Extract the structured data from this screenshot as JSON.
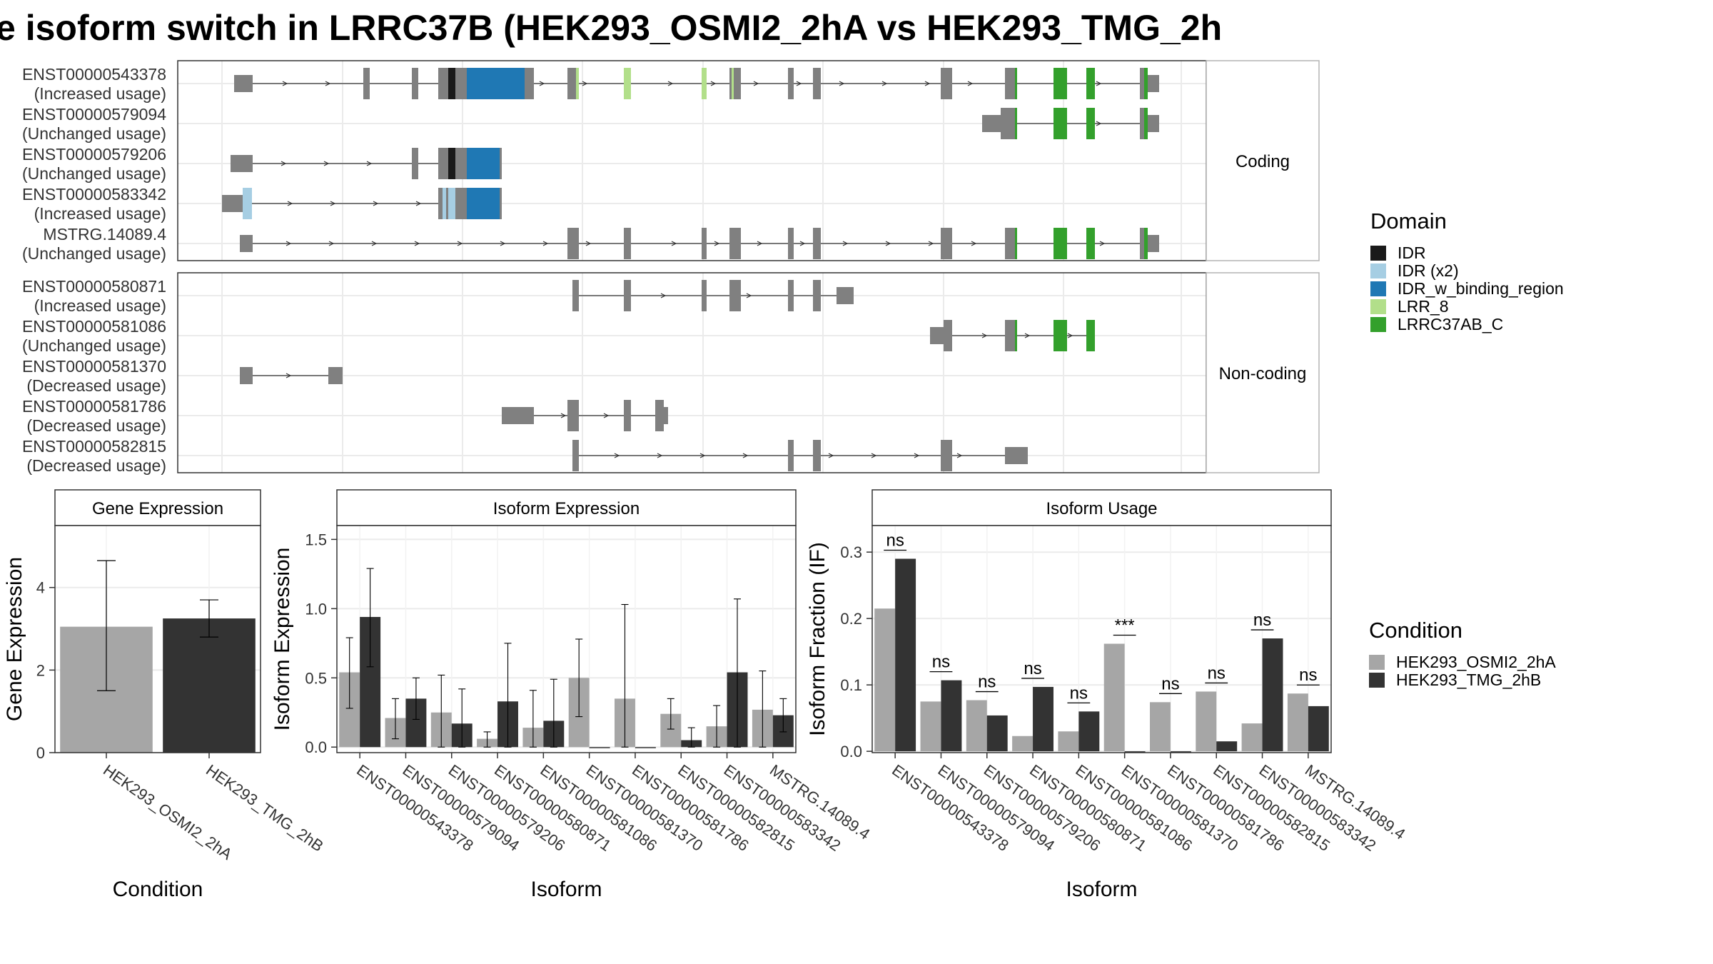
{
  "title": "e isoform switch in LRRC37B (HEK293_OSMI2_2hA vs HEK293_TMG_2h",
  "structure": {
    "facets": [
      {
        "label": "Coding",
        "transcripts": [
          {
            "id": "ENST00000543378",
            "usage": "(Increased usage)"
          },
          {
            "id": "ENST00000579094",
            "usage": "(Unchanged usage)"
          },
          {
            "id": "ENST00000579206",
            "usage": "(Unchanged usage)"
          },
          {
            "id": "ENST00000583342",
            "usage": "(Increased usage)"
          },
          {
            "id": "MSTRG.14089.4",
            "usage": "(Unchanged usage)"
          }
        ]
      },
      {
        "label": "Non-coding",
        "transcripts": [
          {
            "id": "ENST00000580871",
            "usage": "(Increased usage)"
          },
          {
            "id": "ENST00000581086",
            "usage": "(Unchanged usage)"
          },
          {
            "id": "ENST00000581370",
            "usage": "(Decreased usage)"
          },
          {
            "id": "ENST00000581786",
            "usage": "(Decreased usage)"
          },
          {
            "id": "ENST00000582815",
            "usage": "(Decreased usage)"
          }
        ]
      }
    ]
  },
  "legend_domain": {
    "title": "Domain",
    "items": [
      {
        "label": "IDR",
        "color": "#1a1a1a"
      },
      {
        "label": "IDR (x2)",
        "color": "#a6cee3"
      },
      {
        "label": "IDR_w_binding_region",
        "color": "#1f78b4"
      },
      {
        "label": "LRR_8",
        "color": "#b2df8a"
      },
      {
        "label": "LRRC37AB_C",
        "color": "#33a02c"
      }
    ]
  },
  "legend_condition": {
    "title": "Condition",
    "items": [
      {
        "label": "HEK293_OSMI2_2hA",
        "color": "#a6a6a6"
      },
      {
        "label": "HEK293_TMG_2hB",
        "color": "#333333"
      }
    ]
  },
  "chart_data": [
    {
      "type": "bar",
      "title": "Gene Expression",
      "xlabel": "Condition",
      "ylabel": "Gene Expression",
      "ylim": [
        0,
        5.5
      ],
      "yticks": [
        0,
        2,
        4
      ],
      "categories": [
        "HEK293_OSMI2_2hA",
        "HEK293_TMG_2hB"
      ],
      "values": [
        3.05,
        3.25
      ],
      "errors": [
        [
          1.5,
          4.65
        ],
        [
          2.8,
          3.7
        ]
      ]
    },
    {
      "type": "bar",
      "title": "Isoform Expression",
      "xlabel": "Isoform",
      "ylabel": "Isoform Expression",
      "ylim": [
        -0.04,
        1.6
      ],
      "yticks": [
        "0.0",
        "0.5",
        "1.0",
        "1.5"
      ],
      "categories": [
        "ENST00000543378",
        "ENST00000579094",
        "ENST00000579206",
        "ENST00000580871",
        "ENST00000581086",
        "ENST00000581370",
        "ENST00000581786",
        "ENST00000582815",
        "ENST00000583342",
        "MSTRG.14089.4"
      ],
      "series": [
        {
          "name": "HEK293_OSMI2_2hA",
          "values": [
            0.54,
            0.21,
            0.25,
            0.06,
            0.14,
            0.5,
            0.35,
            0.24,
            0.15,
            0.27
          ],
          "errors": [
            [
              0.28,
              0.79
            ],
            [
              0.06,
              0.35
            ],
            [
              0.0,
              0.52
            ],
            [
              0.0,
              0.11
            ],
            [
              0.0,
              0.41
            ],
            [
              0.22,
              0.78
            ],
            [
              0.0,
              1.03
            ],
            [
              0.13,
              0.35
            ],
            [
              0.0,
              0.3
            ],
            [
              0.0,
              0.55
            ]
          ]
        },
        {
          "name": "HEK293_TMG_2hB",
          "values": [
            0.94,
            0.35,
            0.17,
            0.33,
            0.19,
            0.0,
            0.0,
            0.05,
            0.54,
            0.23
          ],
          "errors": [
            [
              0.58,
              1.29
            ],
            [
              0.2,
              0.5
            ],
            [
              0.0,
              0.42
            ],
            [
              0.0,
              0.75
            ],
            [
              0.0,
              0.49
            ],
            null,
            null,
            [
              0.0,
              0.14
            ],
            [
              0.0,
              1.07
            ],
            [
              0.11,
              0.35
            ]
          ]
        }
      ]
    },
    {
      "type": "bar",
      "title": "Isoform Usage",
      "xlabel": "Isoform",
      "ylabel": "Isoform Fraction (IF)",
      "ylim": [
        -0.002,
        0.34
      ],
      "yticks": [
        "0.0",
        "0.1",
        "0.2",
        "0.3"
      ],
      "categories": [
        "ENST00000543378",
        "ENST00000579094",
        "ENST00000579206",
        "ENST00000580871",
        "ENST00000581086",
        "ENST00000581370",
        "ENST00000581786",
        "ENST00000582815",
        "ENST00000583342",
        "MSTRG.14089.4"
      ],
      "series": [
        {
          "name": "HEK293_OSMI2_2hA",
          "values": [
            0.215,
            0.075,
            0.077,
            0.023,
            0.03,
            0.162,
            0.074,
            0.09,
            0.042,
            0.087
          ]
        },
        {
          "name": "HEK293_TMG_2hB",
          "values": [
            0.29,
            0.107,
            0.054,
            0.097,
            0.06,
            0.0,
            0.0,
            0.015,
            0.17,
            0.068
          ]
        }
      ],
      "significance": [
        "ns",
        "ns",
        "ns",
        "ns",
        "ns",
        "***",
        "ns",
        "ns",
        "ns",
        "ns"
      ]
    }
  ]
}
